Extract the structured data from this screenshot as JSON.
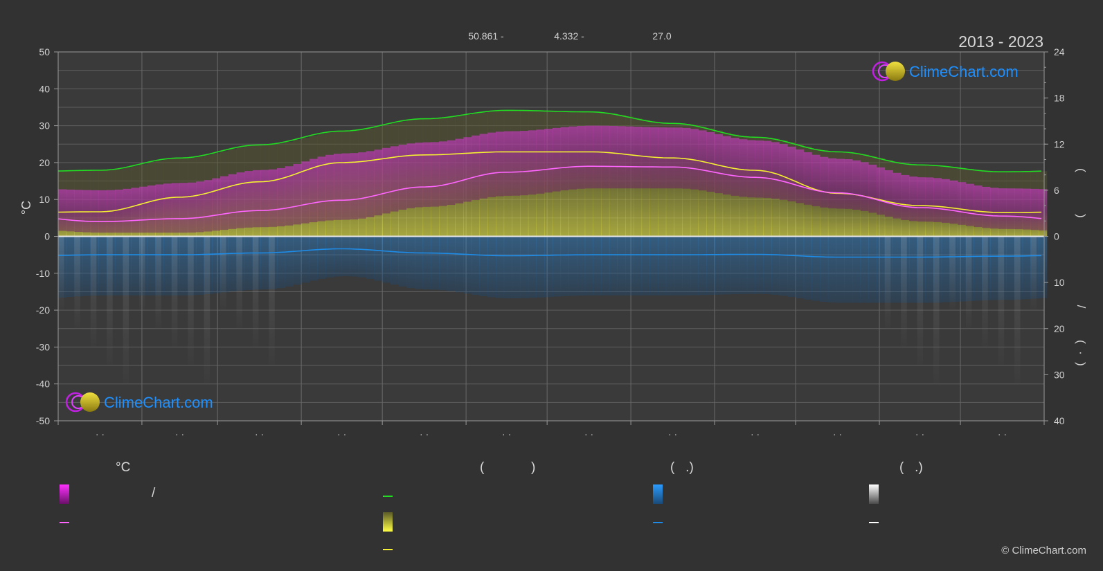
{
  "header": {
    "coord_lat": "50.861 -",
    "coord_lon": "4.332 -",
    "elevation": "27.0",
    "period": "2013 - 2023"
  },
  "axes": {
    "left_unit": "°C",
    "left_ticks": [
      "50",
      "40",
      "30",
      "20",
      "10",
      "0",
      "-10",
      "-20",
      "-30",
      "-40",
      "-50"
    ],
    "right_top_ticks": [
      "24",
      "18",
      "12",
      "6",
      "0"
    ],
    "right_bottom_ticks": [
      "10",
      "20",
      "30",
      "40"
    ],
    "right_glyphs": [
      "(",
      ")",
      "/",
      "(",
      "·",
      ")"
    ],
    "month_ticks": [
      "· ·",
      "· ·",
      "· ·",
      "· ·",
      "· ·",
      "· ·",
      "· ·",
      "· ·",
      "· ·",
      "· ·",
      "· ·",
      "· ·"
    ]
  },
  "logo": {
    "text": "ClimeChart.com"
  },
  "legend": {
    "temp_head": "°C",
    "temp_range_sep": "/",
    "sun_head_open": "(",
    "sun_head_close": ")",
    "rain_head": "(   .)",
    "snow_head": "(   .)"
  },
  "copyright": "© ClimeChart.com",
  "colors": {
    "background": "#323232",
    "daylight": "#22dd22",
    "sunshine": "#f5f032",
    "temperature": "#ff66ff",
    "temp_range": "#e020e0",
    "rain": "#1e8ce6",
    "snow": "#ffffff",
    "grid": "#5e5e5e"
  },
  "chart_data": {
    "type": "area",
    "x_unit": "month",
    "x": [
      1,
      2,
      3,
      4,
      5,
      6,
      7,
      8,
      9,
      10,
      11,
      12
    ],
    "ylim_left": [
      -50,
      50
    ],
    "ylim_right_hours": [
      0,
      24
    ],
    "ylim_right_precip": [
      0,
      40
    ],
    "grid": true,
    "series": [
      {
        "key": "daylight",
        "axis": "hours",
        "values": [
          8.6,
          10.2,
          11.9,
          13.7,
          15.3,
          16.4,
          16.2,
          14.7,
          12.9,
          11.0,
          9.3,
          8.4
        ]
      },
      {
        "key": "sunshine",
        "axis": "hours",
        "values": [
          3.2,
          5.1,
          7.1,
          9.6,
          10.6,
          11.0,
          11.0,
          10.2,
          8.6,
          5.6,
          4.0,
          3.1
        ]
      },
      {
        "key": "temperature",
        "axis": "temp",
        "values": [
          4.0,
          4.8,
          7.0,
          9.8,
          13.4,
          17.4,
          19.0,
          18.8,
          16.0,
          11.8,
          7.8,
          5.5
        ]
      },
      {
        "key": "temp_max",
        "axis": "temp",
        "values": [
          7.5,
          9.5,
          13.0,
          17.5,
          20.5,
          23.5,
          25.0,
          24.5,
          21.0,
          16.0,
          11.0,
          8.0
        ]
      },
      {
        "key": "temp_min",
        "axis": "temp",
        "values": [
          1.0,
          1.0,
          2.5,
          4.5,
          8.0,
          11.0,
          13.0,
          13.0,
          10.5,
          7.5,
          4.0,
          2.0
        ]
      },
      {
        "key": "rain_avg",
        "axis": "precip",
        "values": [
          4.0,
          4.0,
          3.6,
          2.7,
          3.6,
          4.2,
          4.0,
          4.0,
          3.9,
          4.5,
          4.5,
          4.3
        ]
      }
    ]
  }
}
